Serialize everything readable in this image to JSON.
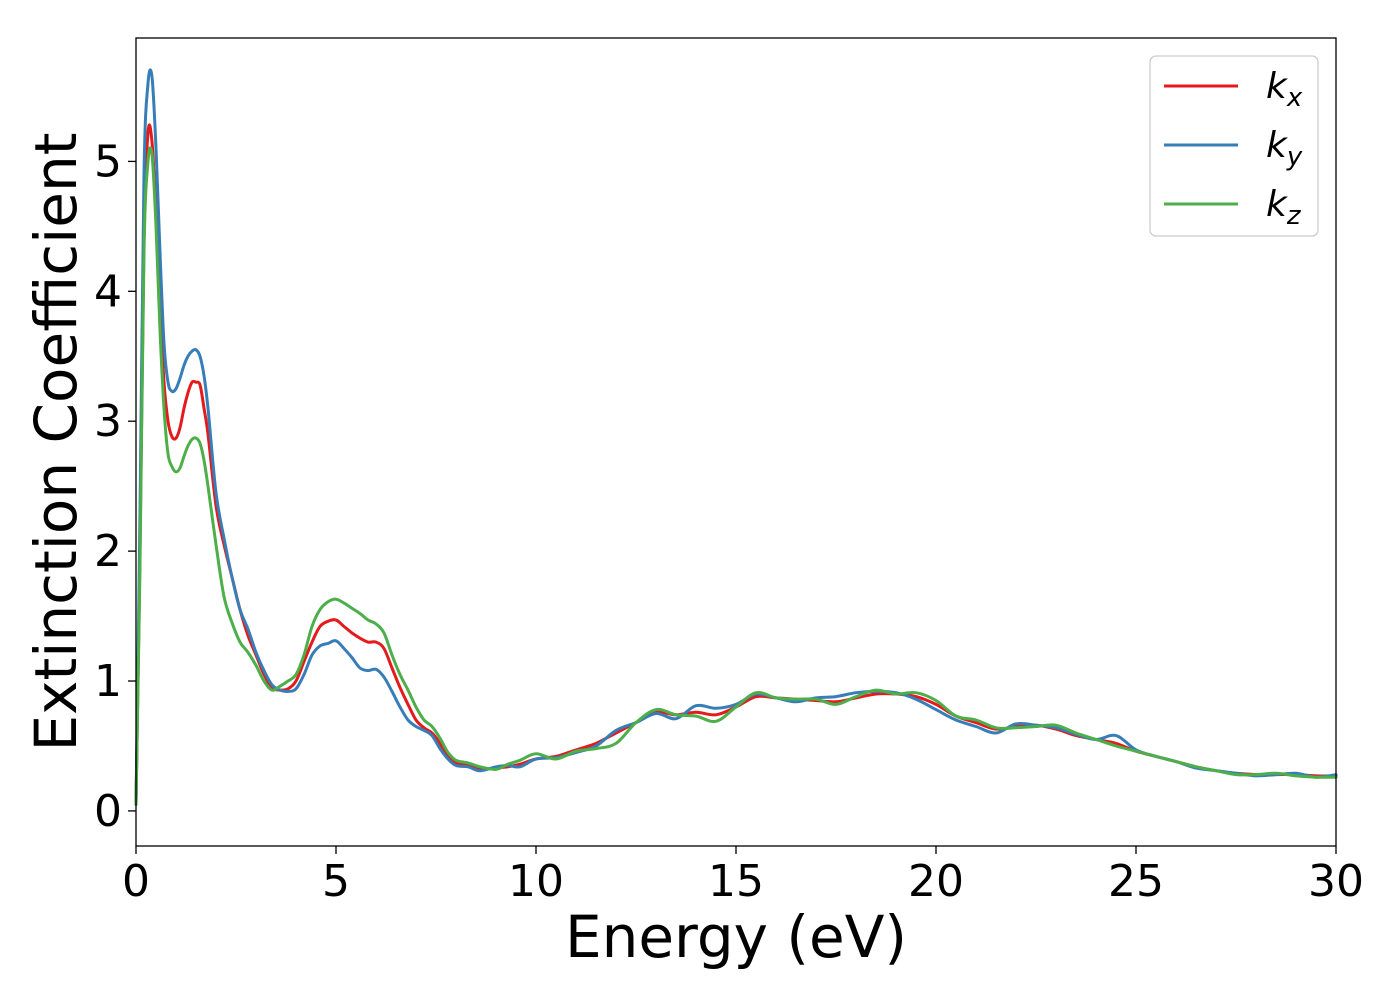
{
  "chart_data": {
    "type": "line",
    "title": "",
    "xlabel": "Energy (eV)",
    "ylabel": "Extinction Coefficient",
    "xlim": [
      0,
      30
    ],
    "ylim": [
      -0.27,
      5.95
    ],
    "xticks": [
      "0",
      "5",
      "10",
      "15",
      "20",
      "25",
      "30"
    ],
    "yticks": [
      "0",
      "1",
      "2",
      "3",
      "4",
      "5"
    ],
    "grid": false,
    "legend_position": "top-right",
    "x": [
      0,
      0.1,
      0.2,
      0.3,
      0.4,
      0.5,
      0.6,
      0.7,
      0.8,
      0.9,
      1.0,
      1.1,
      1.2,
      1.3,
      1.4,
      1.5,
      1.6,
      1.7,
      1.8,
      2.0,
      2.2,
      2.4,
      2.6,
      2.8,
      3.0,
      3.2,
      3.4,
      3.6,
      3.8,
      4.0,
      4.2,
      4.4,
      4.6,
      4.8,
      5.0,
      5.2,
      5.4,
      5.6,
      5.8,
      6.0,
      6.2,
      6.4,
      6.6,
      6.8,
      7.0,
      7.2,
      7.4,
      7.6,
      7.8,
      8.0,
      8.3,
      8.6,
      9.0,
      9.3,
      9.6,
      10.0,
      10.5,
      11.0,
      11.5,
      12.0,
      12.5,
      13.0,
      13.5,
      14.0,
      14.5,
      15.0,
      15.5,
      16.0,
      16.5,
      17.0,
      17.5,
      18.0,
      18.5,
      19.0,
      19.5,
      20.0,
      20.5,
      21.0,
      21.5,
      22.0,
      22.5,
      23.0,
      23.5,
      24.0,
      24.5,
      25.0,
      25.5,
      26.0,
      26.5,
      27.0,
      27.5,
      28.0,
      28.5,
      29.0,
      29.5,
      30.0
    ],
    "series": [
      {
        "name": "x",
        "color": "#e41a1c",
        "values": [
          0.05,
          2.0,
          4.4,
          5.22,
          5.15,
          4.6,
          3.9,
          3.3,
          3.0,
          2.88,
          2.87,
          2.95,
          3.1,
          3.22,
          3.3,
          3.3,
          3.28,
          3.1,
          2.9,
          2.35,
          2.05,
          1.8,
          1.55,
          1.35,
          1.2,
          1.05,
          0.95,
          0.93,
          0.94,
          1.0,
          1.15,
          1.3,
          1.42,
          1.46,
          1.47,
          1.42,
          1.37,
          1.33,
          1.3,
          1.3,
          1.25,
          1.1,
          0.95,
          0.82,
          0.7,
          0.64,
          0.6,
          0.52,
          0.42,
          0.37,
          0.35,
          0.32,
          0.33,
          0.34,
          0.36,
          0.4,
          0.42,
          0.47,
          0.52,
          0.6,
          0.68,
          0.76,
          0.74,
          0.76,
          0.74,
          0.8,
          0.88,
          0.87,
          0.86,
          0.85,
          0.84,
          0.87,
          0.9,
          0.9,
          0.88,
          0.82,
          0.73,
          0.68,
          0.63,
          0.65,
          0.66,
          0.63,
          0.58,
          0.55,
          0.52,
          0.46,
          0.42,
          0.38,
          0.34,
          0.31,
          0.29,
          0.28,
          0.28,
          0.28,
          0.27,
          0.27
        ]
      },
      {
        "name": "y",
        "color": "#377eb8",
        "values": [
          0.05,
          2.3,
          4.9,
          5.6,
          5.65,
          5.1,
          4.3,
          3.6,
          3.3,
          3.23,
          3.25,
          3.33,
          3.43,
          3.5,
          3.54,
          3.55,
          3.5,
          3.35,
          3.1,
          2.45,
          2.1,
          1.8,
          1.55,
          1.4,
          1.22,
          1.08,
          0.97,
          0.93,
          0.92,
          0.94,
          1.05,
          1.2,
          1.27,
          1.29,
          1.31,
          1.25,
          1.18,
          1.1,
          1.08,
          1.09,
          1.03,
          0.92,
          0.8,
          0.7,
          0.65,
          0.62,
          0.58,
          0.48,
          0.4,
          0.35,
          0.34,
          0.31,
          0.34,
          0.35,
          0.34,
          0.4,
          0.41,
          0.45,
          0.5,
          0.62,
          0.68,
          0.75,
          0.71,
          0.81,
          0.79,
          0.82,
          0.9,
          0.87,
          0.84,
          0.87,
          0.88,
          0.91,
          0.92,
          0.91,
          0.86,
          0.78,
          0.7,
          0.65,
          0.6,
          0.67,
          0.66,
          0.64,
          0.59,
          0.55,
          0.58,
          0.47,
          0.42,
          0.38,
          0.33,
          0.31,
          0.29,
          0.27,
          0.28,
          0.29,
          0.26,
          0.28
        ]
      },
      {
        "name": "z",
        "color": "#4daf4a",
        "values": [
          0.05,
          1.9,
          4.3,
          5.0,
          5.05,
          4.5,
          3.7,
          3.1,
          2.75,
          2.65,
          2.61,
          2.64,
          2.73,
          2.81,
          2.86,
          2.87,
          2.83,
          2.7,
          2.5,
          2.05,
          1.65,
          1.45,
          1.3,
          1.22,
          1.12,
          1.0,
          0.93,
          0.96,
          1.0,
          1.05,
          1.2,
          1.42,
          1.55,
          1.61,
          1.63,
          1.6,
          1.56,
          1.52,
          1.47,
          1.44,
          1.37,
          1.2,
          1.05,
          0.93,
          0.8,
          0.7,
          0.65,
          0.56,
          0.45,
          0.39,
          0.37,
          0.34,
          0.32,
          0.36,
          0.39,
          0.44,
          0.4,
          0.46,
          0.48,
          0.52,
          0.68,
          0.78,
          0.74,
          0.73,
          0.69,
          0.8,
          0.91,
          0.87,
          0.86,
          0.86,
          0.82,
          0.88,
          0.93,
          0.9,
          0.91,
          0.85,
          0.73,
          0.7,
          0.64,
          0.64,
          0.65,
          0.66,
          0.6,
          0.55,
          0.5,
          0.46,
          0.42,
          0.38,
          0.34,
          0.31,
          0.28,
          0.28,
          0.29,
          0.27,
          0.26,
          0.26
        ]
      }
    ]
  }
}
